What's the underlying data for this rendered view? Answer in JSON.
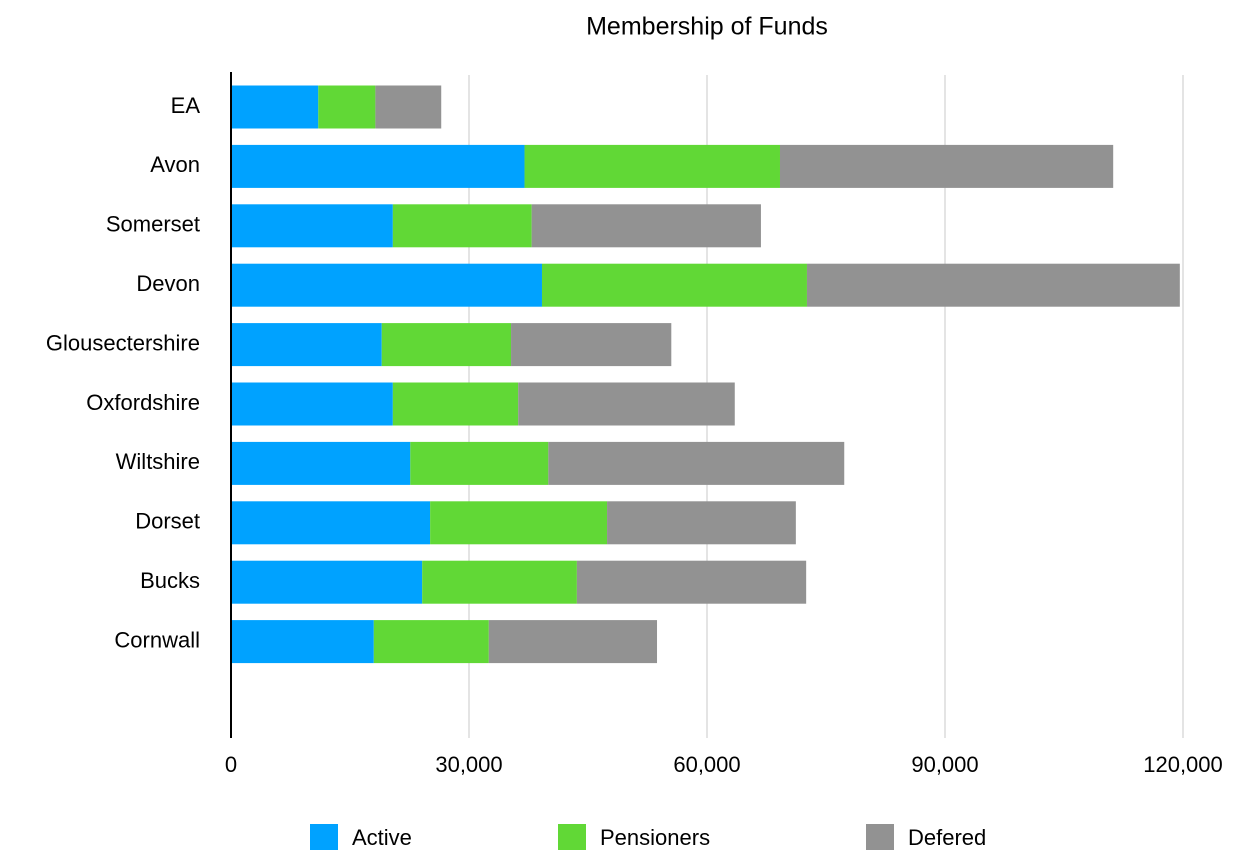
{
  "chart_data": {
    "type": "stacked_bar_horizontal",
    "title": "Membership of Funds",
    "categories": [
      "EA",
      "Avon",
      "Somerset",
      "Devon",
      "Glousectershire",
      "Oxfordshire",
      "Wiltshire",
      "Dorset",
      "Bucks",
      "Cornwall"
    ],
    "series": [
      {
        "name": "Active",
        "color": "#00a2ff",
        "values": [
          11000,
          37000,
          20400,
          39200,
          19000,
          20400,
          22600,
          25100,
          24100,
          18000
        ]
      },
      {
        "name": "Pensioners",
        "color": "#61d836",
        "values": [
          7200,
          32200,
          17500,
          33400,
          16300,
          15800,
          17400,
          22300,
          19500,
          14500
        ]
      },
      {
        "name": "Defered",
        "color": "#929292",
        "values": [
          8300,
          42000,
          28900,
          47000,
          20200,
          27300,
          37300,
          23800,
          28900,
          21200
        ]
      }
    ],
    "xlim": [
      0,
      120000
    ],
    "xticks": [
      0,
      {
        "value": 30000,
        "label": "30,000"
      },
      {
        "value": 60000,
        "label": "60,000"
      },
      {
        "value": 90000,
        "label": "90,000"
      },
      {
        "value": 120000,
        "label": "120,000"
      }
    ],
    "grid": true,
    "legend": "bottom"
  }
}
